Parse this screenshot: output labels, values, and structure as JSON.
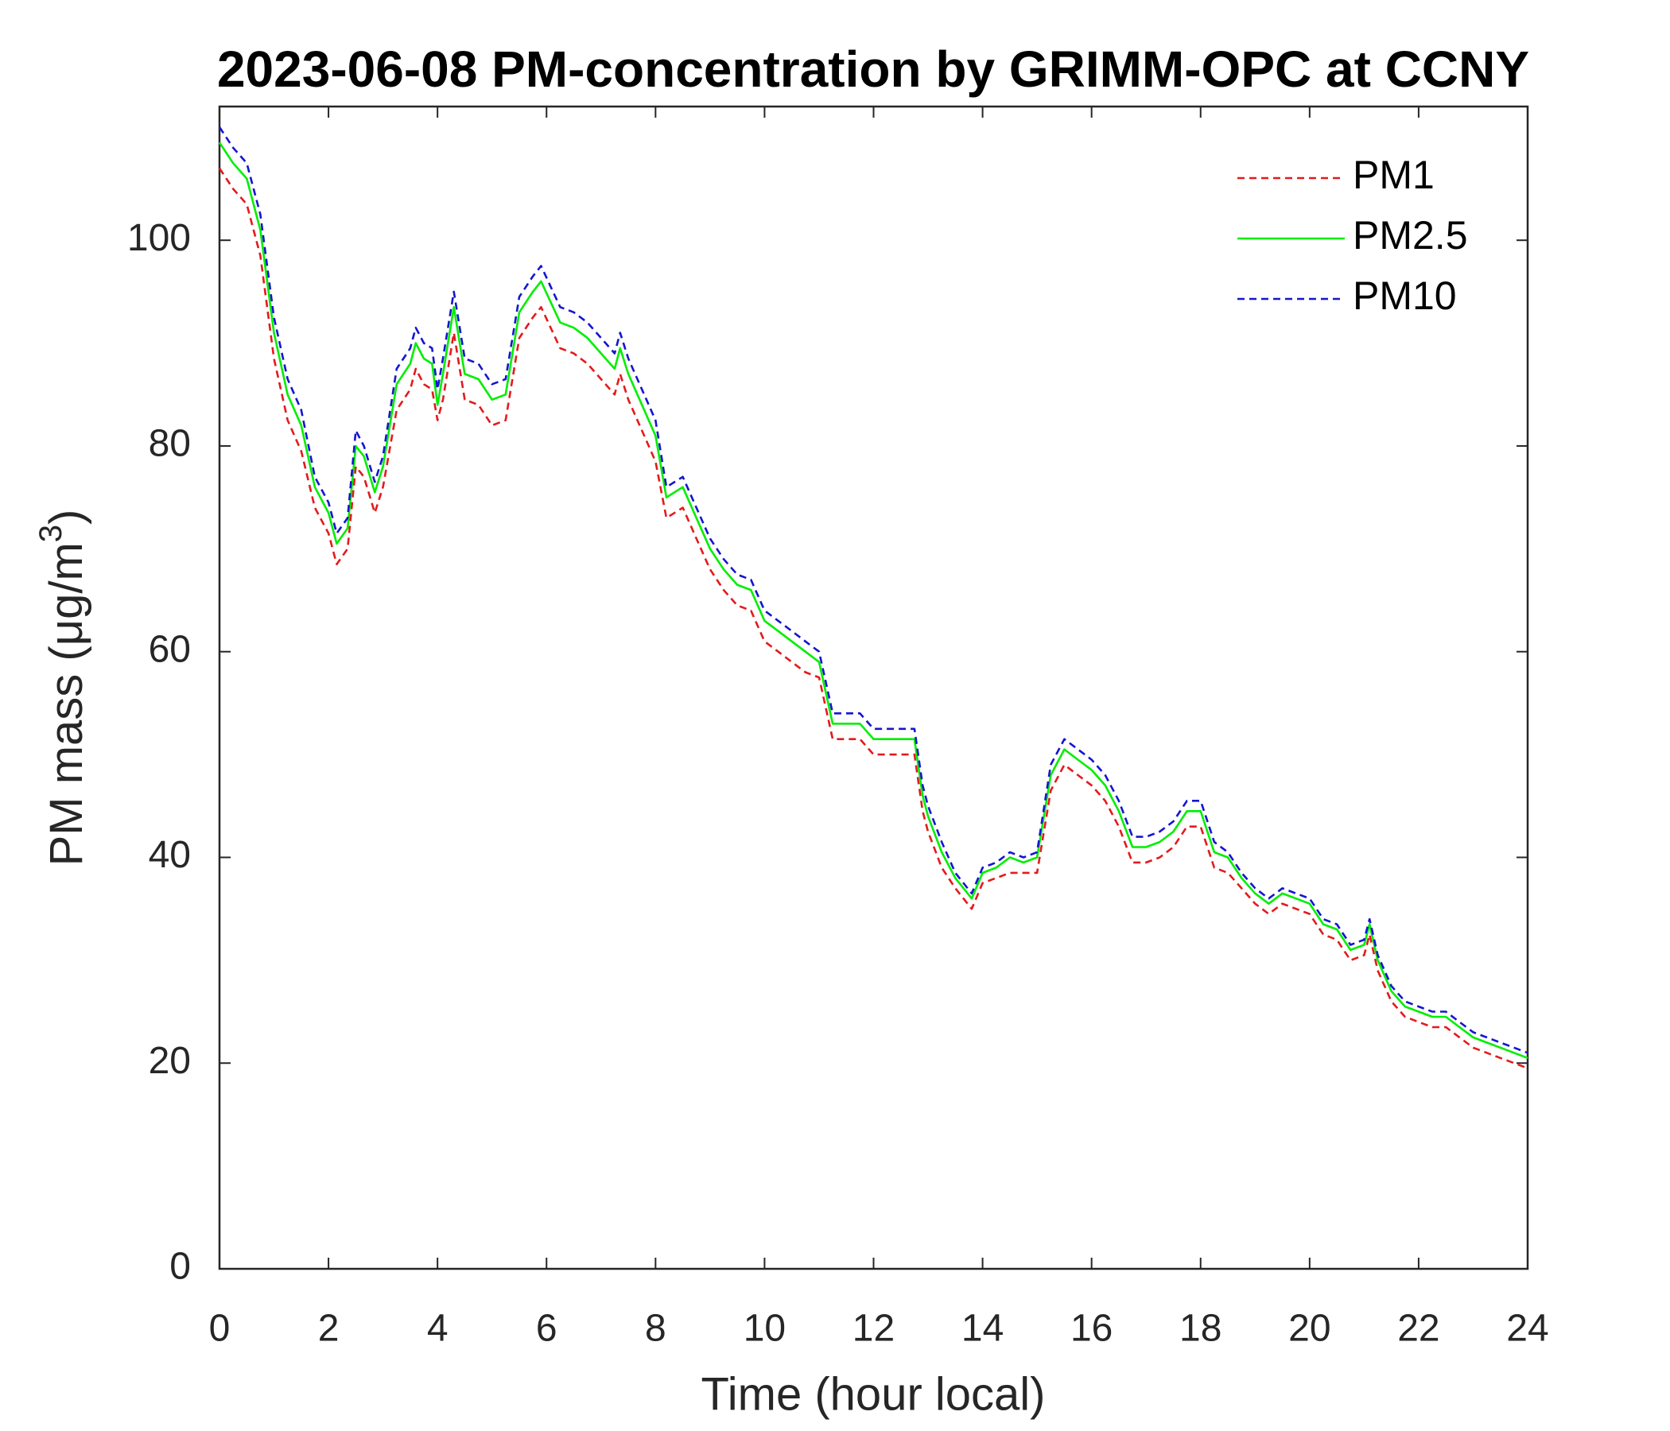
{
  "chart_data": {
    "type": "line",
    "title": "2023-06-08 PM-concentration by GRIMM-OPC at CCNY",
    "xlabel": "Time (hour local)",
    "ylabel": [
      "PM mass (μg/m",
      "3",
      ")"
    ],
    "xlim": [
      0,
      24
    ],
    "xticks": [
      0,
      2,
      4,
      6,
      8,
      10,
      12,
      14,
      16,
      18,
      20,
      22,
      24
    ],
    "ylim": [
      0,
      113
    ],
    "yticks": [
      0,
      20,
      40,
      60,
      80,
      100
    ],
    "grid": false,
    "legend": "northeast",
    "x": [
      0,
      0.25,
      0.5,
      0.75,
      1,
      1.25,
      1.5,
      1.75,
      2,
      2.15,
      2.35,
      2.5,
      2.65,
      2.85,
      3,
      3.25,
      3.5,
      3.6,
      3.75,
      3.9,
      4,
      4.1,
      4.3,
      4.5,
      4.75,
      5,
      5.25,
      5.5,
      5.75,
      5.9,
      6.25,
      6.5,
      6.75,
      7,
      7.25,
      7.35,
      7.5,
      7.75,
      8,
      8.2,
      8.5,
      8.75,
      9,
      9.25,
      9.5,
      9.75,
      10,
      10.25,
      10.5,
      10.75,
      11,
      11.25,
      11.5,
      11.75,
      12,
      12.25,
      12.5,
      12.75,
      12.9,
      13,
      13.25,
      13.5,
      13.8,
      14,
      14.25,
      14.5,
      14.75,
      15,
      15.25,
      15.5,
      15.75,
      16,
      16.25,
      16.5,
      16.75,
      17,
      17.25,
      17.5,
      17.75,
      18,
      18.25,
      18.5,
      18.75,
      19,
      19.25,
      19.5,
      19.75,
      20,
      20.25,
      20.5,
      20.75,
      21,
      21.1,
      21.25,
      21.5,
      21.75,
      22,
      22.25,
      22.5,
      22.75,
      23,
      23.25,
      23.5,
      23.75,
      24
    ],
    "series": [
      {
        "name": "PM1",
        "color": "#e41a1c",
        "linestyle": "--",
        "values": [
          107,
          105,
          103.5,
          98.5,
          88.5,
          82.5,
          79.5,
          74,
          71.5,
          68.5,
          70,
          78,
          77,
          73.5,
          76,
          83.5,
          85.5,
          87.5,
          86,
          85.5,
          82.5,
          84.5,
          91,
          84.5,
          84,
          82,
          82.5,
          90.5,
          92.5,
          93.5,
          89.5,
          89,
          88,
          86.5,
          85,
          87,
          84.5,
          81.5,
          78.5,
          73,
          74,
          71,
          68,
          66,
          64.5,
          64,
          61,
          60,
          59,
          58,
          57.5,
          51.5,
          51.5,
          51.5,
          50,
          50,
          50,
          50,
          44.5,
          42.5,
          39,
          37,
          35,
          37.5,
          38,
          38.5,
          38.5,
          38.5,
          46.5,
          49,
          48,
          47,
          45.5,
          43,
          39.5,
          39.5,
          40,
          41,
          43,
          43,
          39,
          38.5,
          37,
          35.5,
          34.5,
          35.5,
          35,
          34.5,
          32.5,
          32,
          30,
          30.5,
          32.5,
          29,
          26,
          24.5,
          24,
          23.5,
          23.5,
          22.5,
          21.5,
          21,
          20.5,
          20,
          19.5
        ]
      },
      {
        "name": "PM2.5",
        "color": "#00ee00",
        "linestyle": "-",
        "values": [
          109.5,
          107.5,
          106,
          101,
          91,
          85,
          82,
          76,
          73.5,
          70.5,
          72,
          80,
          79,
          75.5,
          78,
          86,
          88,
          90,
          88.5,
          88,
          84,
          87,
          93.5,
          87,
          86.5,
          84.5,
          85,
          93,
          95,
          96,
          92,
          91.5,
          90.5,
          89,
          87.5,
          89.5,
          87,
          84,
          81,
          75,
          76,
          73,
          70,
          68,
          66.5,
          66,
          63,
          62,
          61,
          60,
          59,
          53,
          53,
          53,
          51.5,
          51.5,
          51.5,
          51.5,
          46,
          44,
          40.5,
          38,
          36,
          38.5,
          39,
          40,
          39.5,
          40,
          48,
          50.5,
          49.5,
          48.5,
          47,
          44.5,
          41,
          41,
          41.5,
          42.5,
          44.5,
          44.5,
          40.5,
          40,
          38,
          36.5,
          35.5,
          36.5,
          36,
          35.5,
          33.5,
          33,
          31,
          31.5,
          33.5,
          30,
          27,
          25.5,
          25,
          24.5,
          24.5,
          23.5,
          22.5,
          22,
          21.5,
          21,
          20.5
        ]
      },
      {
        "name": "PM10",
        "color": "#1515d0",
        "linestyle": "--",
        "values": [
          111,
          109,
          107.5,
          102.5,
          92.5,
          86.5,
          83.5,
          77,
          74.5,
          71.5,
          73,
          81.5,
          80,
          76.5,
          79,
          87.5,
          89.5,
          91.5,
          90,
          89.5,
          85.5,
          88.5,
          95,
          88.5,
          88,
          86,
          86.5,
          94.5,
          96.5,
          97.5,
          93.5,
          93,
          92,
          90.5,
          89,
          91,
          88.5,
          85.5,
          82.5,
          76,
          77,
          74,
          71,
          69,
          67.5,
          67,
          64,
          63,
          62,
          61,
          60,
          54,
          54,
          54,
          52.5,
          52.5,
          52.5,
          52.5,
          47,
          45,
          41.5,
          38.5,
          36.5,
          39,
          39.5,
          40.5,
          40,
          40.5,
          49,
          51.5,
          50.5,
          49.5,
          48,
          45.5,
          42,
          42,
          42.5,
          43.5,
          45.5,
          45.5,
          41.5,
          40.5,
          38.5,
          37,
          36,
          37,
          36.5,
          36,
          34,
          33.5,
          31.5,
          32,
          34,
          30.5,
          27.5,
          26,
          25.5,
          25,
          25,
          24,
          23,
          22.5,
          22,
          21.5,
          21
        ]
      }
    ]
  }
}
